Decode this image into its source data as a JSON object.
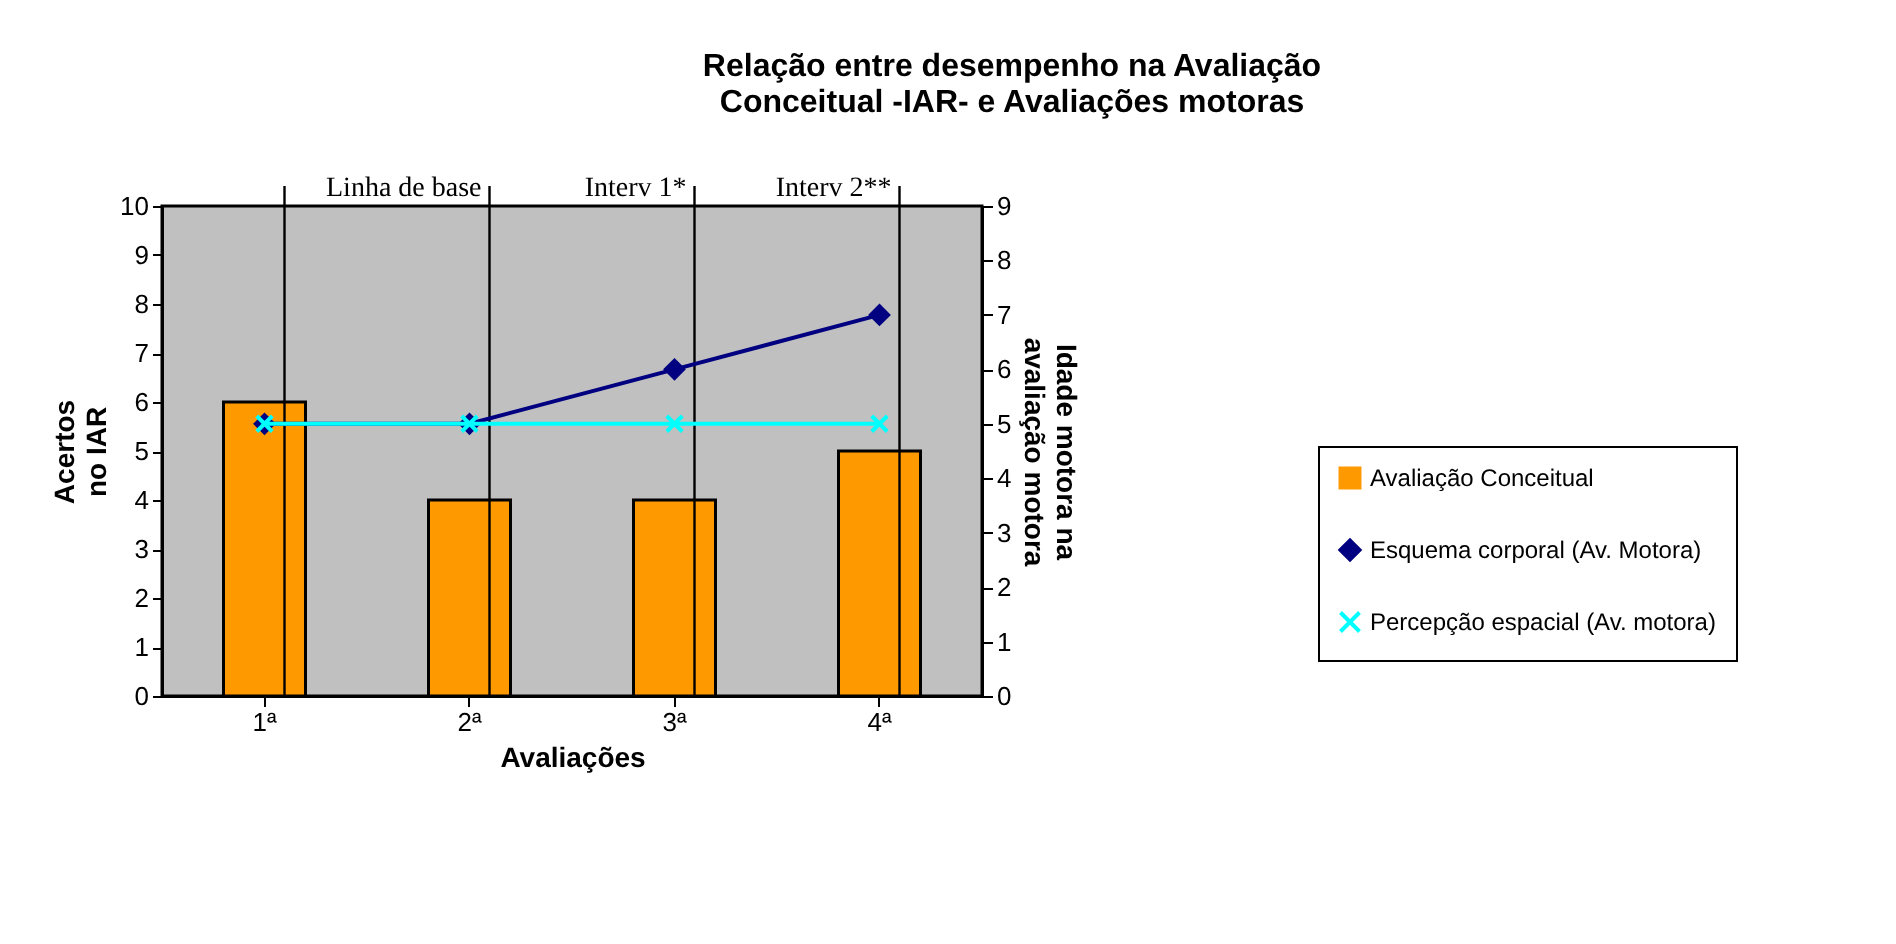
{
  "chart_data": {
    "type": "bar",
    "title": "Relação entre desempenho na Avaliação Conceitual -IAR- e Avaliações motoras",
    "xlabel": "Avaliações",
    "ylabel": "Acertos no IAR",
    "y2label": "Idade motora na avaliação motora",
    "categories": [
      "1ª",
      "2ª",
      "3ª",
      "4ª"
    ],
    "series": [
      {
        "name": "Avaliação Conceitual",
        "color": "#ff9900",
        "values": [
          6,
          4,
          4,
          5
        ]
      },
      {
        "name": "Esquema corporal (Av. Motora)",
        "type": "line",
        "axis": "y2",
        "marker": "diamond",
        "color": "#000080",
        "values": [
          5,
          5,
          6,
          7
        ]
      },
      {
        "name": "Percepção espacial (Av. motora)",
        "type": "line",
        "axis": "y2",
        "marker": "cross",
        "color": "#00ffff",
        "values": [
          5,
          5,
          5,
          5
        ]
      }
    ],
    "ylim": [
      0,
      10
    ],
    "yticks": [
      0,
      1,
      2,
      3,
      4,
      5,
      6,
      7,
      8,
      9,
      10
    ],
    "y2lim": [
      0,
      9
    ],
    "y2ticks": [
      0,
      1,
      2,
      3,
      4,
      5,
      6,
      7,
      8,
      9
    ],
    "ref_lines": [
      {
        "axis": "x",
        "value": "1ª",
        "label": null
      },
      {
        "axis": "x",
        "value": "2ª",
        "label": "Linha de base"
      },
      {
        "axis": "x",
        "value": "3ª",
        "label": "Interv 1*"
      },
      {
        "axis": "x",
        "value": "4ª",
        "label": "Interv 2**"
      }
    ],
    "grid": false,
    "legend": "right"
  }
}
